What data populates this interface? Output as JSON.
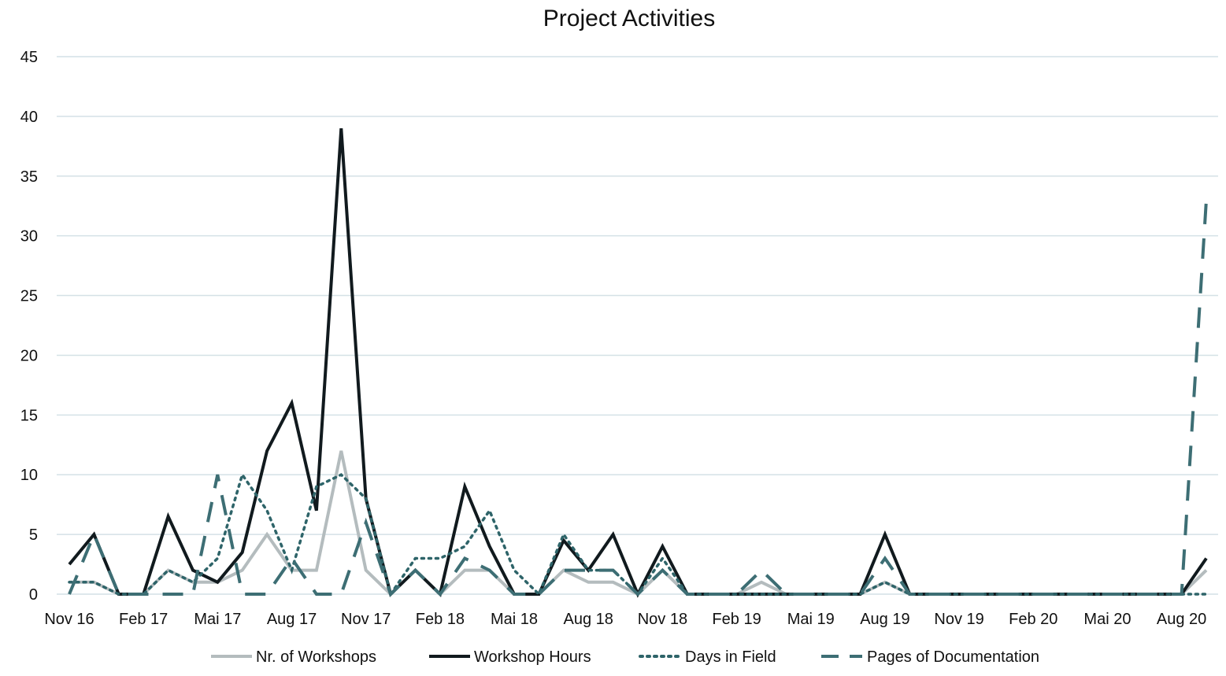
{
  "chart_data": {
    "type": "line",
    "title": "Project Activities",
    "xlabel": "",
    "ylabel": "",
    "ylim": [
      0,
      45
    ],
    "yticks": [
      0,
      5,
      10,
      15,
      20,
      25,
      30,
      35,
      40,
      45
    ],
    "grid": true,
    "legend": "bottom",
    "x": [
      "Nov 16",
      "Dez 16",
      "Jan 17",
      "Feb 17",
      "Mär 17",
      "Apr 17",
      "Mai 17",
      "Jun 17",
      "Jul 17",
      "Aug 17",
      "Sep 17",
      "Okt 17",
      "Nov 17",
      "Dez 17",
      "Jan 18",
      "Feb 18",
      "Mär 18",
      "Apr 18",
      "Mai 18",
      "Jun 18",
      "Jul 18",
      "Aug 18",
      "Sep 18",
      "Okt 18",
      "Nov 18",
      "Dez 18",
      "Jan 19",
      "Feb 19",
      "Mär 19",
      "Apr 19",
      "Mai 19",
      "Jun 19",
      "Jul 19",
      "Aug 19",
      "Sep 19",
      "Okt 19",
      "Nov 19",
      "Dez 19",
      "Jan 20",
      "Feb 20",
      "Mär 20",
      "Apr 20",
      "Mai 20",
      "Jun 20",
      "Jul 20",
      "Aug 20",
      "Sep 20"
    ],
    "tick_labels": [
      "Nov 16",
      "Feb 17",
      "Mai 17",
      "Aug 17",
      "Nov 17",
      "Feb 18",
      "Mai 18",
      "Aug 18",
      "Nov 18",
      "Feb 19",
      "Mai 19",
      "Aug 19",
      "Nov 19",
      "Feb 20",
      "Mai 20",
      "Aug 20"
    ],
    "series": [
      {
        "name": "Nr. of Workshops",
        "color": "#b4bcbe",
        "style": "solid",
        "values": [
          1,
          1,
          0,
          0,
          2,
          1,
          1,
          2,
          5,
          2,
          2,
          12,
          2,
          0,
          2,
          0,
          2,
          2,
          0,
          0,
          2,
          1,
          1,
          0,
          2,
          0,
          0,
          0,
          1,
          0,
          0,
          0,
          0,
          1,
          0,
          0,
          0,
          0,
          0,
          0,
          0,
          0,
          0,
          0,
          0,
          0,
          2
        ]
      },
      {
        "name": "Workshop Hours",
        "color": "#111a1e",
        "style": "solid",
        "values": [
          2.5,
          5,
          0,
          0,
          6.5,
          2,
          1,
          3.5,
          12,
          16,
          7,
          39,
          8,
          0,
          2,
          0,
          9,
          4,
          0,
          0,
          4.5,
          2,
          5,
          0,
          4,
          0,
          0,
          0,
          0,
          0,
          0,
          0,
          0,
          5,
          0,
          0,
          0,
          0,
          0,
          0,
          0,
          0,
          0,
          0,
          0,
          0,
          3
        ]
      },
      {
        "name": "Days in Field",
        "color": "#2e6469",
        "style": "dotted",
        "values": [
          1,
          1,
          0,
          0,
          2,
          1,
          3,
          10,
          7,
          2,
          9,
          10,
          8,
          0,
          3,
          3,
          4,
          7,
          2,
          0,
          5,
          2,
          2,
          0,
          3,
          0,
          0,
          0,
          0,
          0,
          0,
          0,
          0,
          1,
          0,
          0,
          0,
          0,
          0,
          0,
          0,
          0,
          0,
          0,
          0,
          0,
          0
        ]
      },
      {
        "name": "Pages of Documentation",
        "color": "#3d6e74",
        "style": "dashed",
        "values": [
          0,
          5,
          0,
          0,
          0,
          0,
          10,
          0,
          0,
          3,
          0,
          0,
          6,
          0,
          2,
          0,
          3,
          2,
          0,
          0,
          2,
          2,
          2,
          0,
          2,
          0,
          0,
          0,
          2,
          0,
          0,
          0,
          0,
          3,
          0,
          0,
          0,
          0,
          0,
          0,
          0,
          0,
          0,
          0,
          0,
          0,
          33
        ]
      }
    ]
  }
}
